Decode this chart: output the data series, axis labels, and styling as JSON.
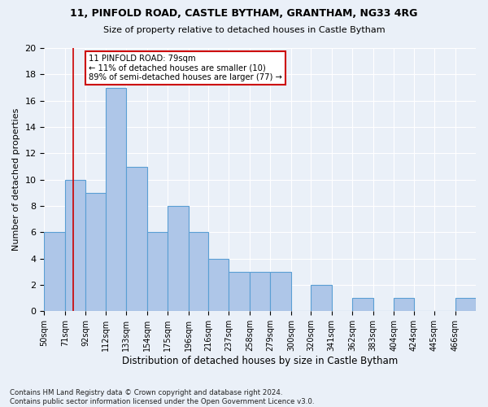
{
  "title1": "11, PINFOLD ROAD, CASTLE BYTHAM, GRANTHAM, NG33 4RG",
  "title2": "Size of property relative to detached houses in Castle Bytham",
  "xlabel": "Distribution of detached houses by size in Castle Bytham",
  "ylabel": "Number of detached properties",
  "bar_values": [
    6,
    10,
    9,
    17,
    11,
    6,
    8,
    6,
    4,
    3,
    3,
    3,
    0,
    2,
    0,
    1,
    0,
    1,
    0,
    0,
    1
  ],
  "bin_labels": [
    "50sqm",
    "71sqm",
    "92sqm",
    "112sqm",
    "133sqm",
    "154sqm",
    "175sqm",
    "196sqm",
    "216sqm",
    "237sqm",
    "258sqm",
    "279sqm",
    "300sqm",
    "320sqm",
    "341sqm",
    "362sqm",
    "383sqm",
    "404sqm",
    "424sqm",
    "445sqm",
    "466sqm"
  ],
  "bin_edges": [
    50,
    71,
    92,
    112,
    133,
    154,
    175,
    196,
    216,
    237,
    258,
    279,
    300,
    320,
    341,
    362,
    383,
    404,
    424,
    445,
    466,
    487
  ],
  "bar_color": "#aec6e8",
  "bar_edge_color": "#5a9fd4",
  "vline_x": 79,
  "vline_color": "#cc0000",
  "annotation_text": "11 PINFOLD ROAD: 79sqm\n← 11% of detached houses are smaller (10)\n89% of semi-detached houses are larger (77) →",
  "annotation_box_color": "#ffffff",
  "annotation_box_edge": "#cc0000",
  "ylim": [
    0,
    20
  ],
  "yticks": [
    0,
    2,
    4,
    6,
    8,
    10,
    12,
    14,
    16,
    18,
    20
  ],
  "footer": "Contains HM Land Registry data © Crown copyright and database right 2024.\nContains public sector information licensed under the Open Government Licence v3.0.",
  "bg_color": "#eaf0f8",
  "grid_color": "#ffffff"
}
